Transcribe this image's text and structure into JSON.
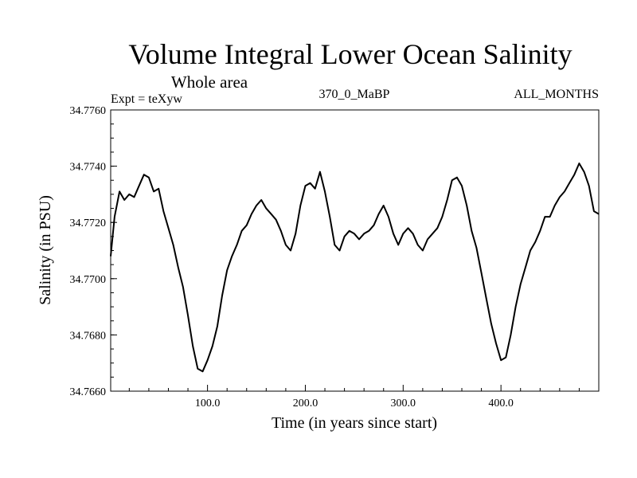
{
  "chart_data": {
    "type": "line",
    "title": "Volume Integral Lower Ocean Salinity",
    "subtitle": "Whole area",
    "header_left": "Expt = teXyw",
    "header_center": "370_0_MaBP",
    "header_right": "ALL_MONTHS",
    "xlabel": "Time (in years since start)",
    "ylabel": "Salinity (in PSU)",
    "xlim": [
      1,
      500
    ],
    "ylim": [
      34.766,
      34.776
    ],
    "xticks": [
      100,
      200,
      300,
      400
    ],
    "xtick_labels": [
      "100.0",
      "200.0",
      "300.0",
      "400.0"
    ],
    "yticks": [
      34.766,
      34.768,
      34.77,
      34.772,
      34.774,
      34.776
    ],
    "ytick_labels": [
      "34.7660",
      "34.7680",
      "34.7700",
      "34.7720",
      "34.7740",
      "34.7760"
    ],
    "grid": false,
    "series": [
      {
        "x": [
          1,
          5,
          10,
          15,
          20,
          25,
          30,
          35,
          40,
          45,
          50,
          55,
          60,
          65,
          70,
          75,
          80,
          85,
          90,
          95,
          100,
          105,
          110,
          115,
          120,
          125,
          130,
          135,
          140,
          145,
          150,
          155,
          160,
          165,
          170,
          175,
          180,
          185,
          190,
          195,
          200,
          205,
          210,
          215,
          220,
          225,
          230,
          235,
          240,
          245,
          250,
          255,
          260,
          265,
          270,
          275,
          280,
          285,
          290,
          295,
          300,
          305,
          310,
          315,
          320,
          325,
          330,
          335,
          340,
          345,
          350,
          355,
          360,
          365,
          370,
          375,
          380,
          385,
          390,
          395,
          400,
          405,
          410,
          415,
          420,
          425,
          430,
          435,
          440,
          445,
          450,
          455,
          460,
          465,
          470,
          475,
          480,
          485,
          490,
          495,
          500
        ],
        "y": [
          34.7708,
          34.7722,
          34.7731,
          34.7728,
          34.773,
          34.7729,
          34.7733,
          34.7737,
          34.7736,
          34.7731,
          34.7732,
          34.7724,
          34.7718,
          34.7712,
          34.7704,
          34.7697,
          34.7687,
          34.7676,
          34.7668,
          34.7667,
          34.7671,
          34.7676,
          34.7683,
          34.7694,
          34.7703,
          34.7708,
          34.7712,
          34.7717,
          34.7719,
          34.7723,
          34.7726,
          34.7728,
          34.7725,
          34.7723,
          34.7721,
          34.7717,
          34.7712,
          34.771,
          34.7716,
          34.7726,
          34.7733,
          34.7734,
          34.7732,
          34.7738,
          34.7731,
          34.7722,
          34.7712,
          34.771,
          34.7715,
          34.7717,
          34.7716,
          34.7714,
          34.7716,
          34.7717,
          34.7719,
          34.7723,
          34.7726,
          34.7722,
          34.7716,
          34.7712,
          34.7716,
          34.7718,
          34.7716,
          34.7712,
          34.771,
          34.7714,
          34.7716,
          34.7718,
          34.7722,
          34.7728,
          34.7735,
          34.7736,
          34.7733,
          34.7726,
          34.7717,
          34.7711,
          34.7702,
          34.7693,
          34.7684,
          34.7677,
          34.7671,
          34.7672,
          34.768,
          34.769,
          34.7698,
          34.7704,
          34.771,
          34.7713,
          34.7717,
          34.7722,
          34.7722,
          34.7726,
          34.7729,
          34.7731,
          34.7734,
          34.7737,
          34.7741,
          34.7738,
          34.7733,
          34.7724,
          34.7723
        ]
      }
    ]
  }
}
